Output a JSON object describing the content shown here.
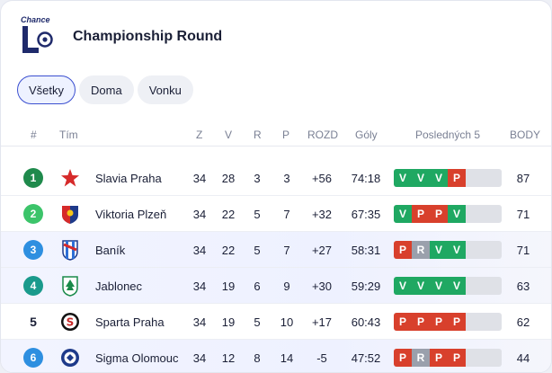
{
  "header": {
    "logo_text": "Chance",
    "title": "Championship Round"
  },
  "tabs": [
    {
      "label": "Všetky",
      "active": true
    },
    {
      "label": "Doma",
      "active": false
    },
    {
      "label": "Vonku",
      "active": false
    }
  ],
  "columns": [
    "#",
    "Tím",
    "Z",
    "V",
    "R",
    "P",
    "ROZD",
    "Góly",
    "Posledných 5",
    "BODY"
  ],
  "colors": {
    "rank_green_dark": "#1f8a4c",
    "rank_green_light": "#3cc46a",
    "rank_blue": "#2e8fe0",
    "rank_teal": "#1a9a8c",
    "win": "#1fa862",
    "loss": "#d8402c",
    "draw": "#9aa0ac",
    "empty": "#dfe1e7"
  },
  "rows": [
    {
      "rank": "1",
      "rank_style": "green_dark",
      "team": "Slavia Praha",
      "crest": "star-crest",
      "z": "34",
      "v": "28",
      "r": "3",
      "p": "3",
      "rozd": "+56",
      "goly": "74:18",
      "form": [
        "V",
        "V",
        "V",
        "P"
      ],
      "body": "87"
    },
    {
      "rank": "2",
      "rank_style": "green_light",
      "team": "Viktoria Plzeň",
      "crest": "shield-crest",
      "z": "34",
      "v": "22",
      "r": "5",
      "p": "7",
      "rozd": "+32",
      "goly": "67:35",
      "form": [
        "V",
        "P",
        "P",
        "V"
      ],
      "body": "71"
    },
    {
      "rank": "3",
      "rank_style": "blue",
      "team": "Baník",
      "crest": "stripes-crest",
      "z": "34",
      "v": "22",
      "r": "5",
      "p": "7",
      "rozd": "+27",
      "goly": "58:31",
      "form": [
        "P",
        "R",
        "V",
        "V"
      ],
      "body": "71"
    },
    {
      "rank": "4",
      "rank_style": "teal",
      "team": "Jablonec",
      "crest": "tree-crest",
      "z": "34",
      "v": "19",
      "r": "6",
      "p": "9",
      "rozd": "+30",
      "goly": "59:29",
      "form": [
        "V",
        "V",
        "V",
        "V"
      ],
      "body": "63"
    },
    {
      "rank": "5",
      "rank_style": "plain",
      "team": "Sparta Praha",
      "crest": "s-crest",
      "z": "34",
      "v": "19",
      "r": "5",
      "p": "10",
      "rozd": "+17",
      "goly": "60:43",
      "form": [
        "P",
        "P",
        "P",
        "P"
      ],
      "body": "62"
    },
    {
      "rank": "6",
      "rank_style": "blue",
      "team": "Sigma Olomouc",
      "crest": "round-crest",
      "z": "34",
      "v": "12",
      "r": "8",
      "p": "14",
      "rozd": "-5",
      "goly": "47:52",
      "form": [
        "P",
        "R",
        "P",
        "P"
      ],
      "body": "44"
    }
  ]
}
